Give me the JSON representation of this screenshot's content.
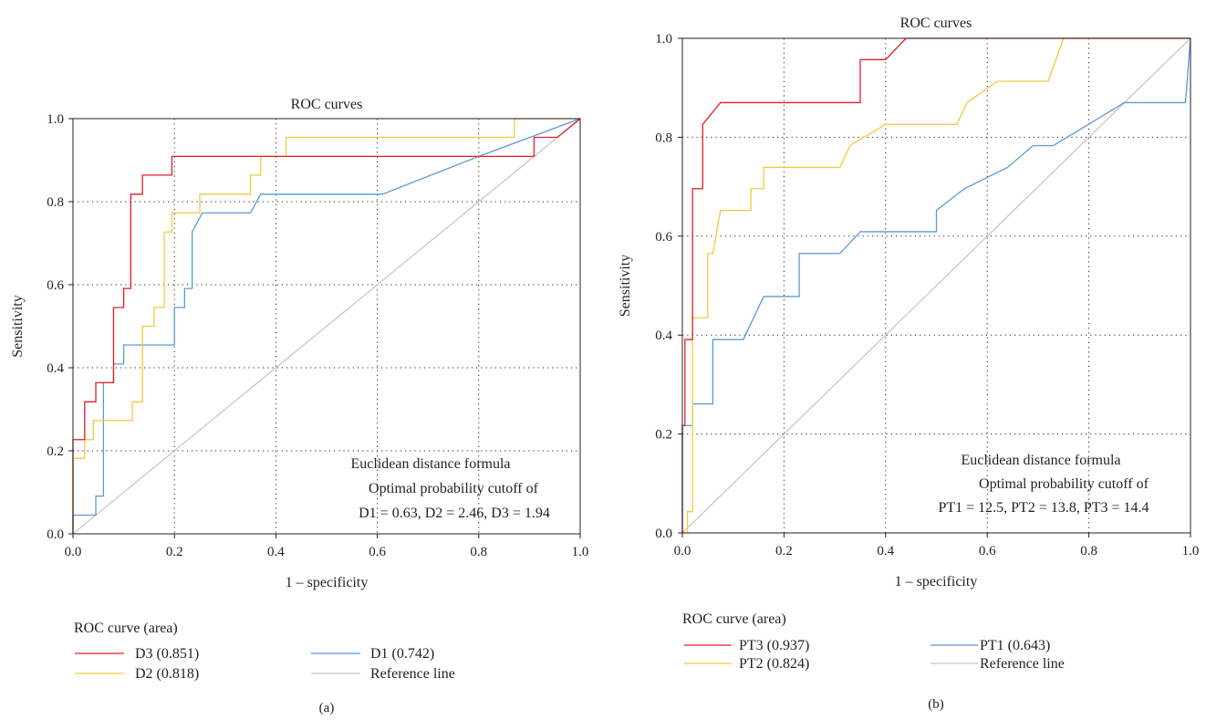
{
  "chart_data": [
    {
      "type": "line",
      "panel_label": "(a)",
      "title": "ROC curves",
      "xlabel": "1 – specificity",
      "ylabel": "Sensitivity",
      "xlim": [
        0,
        1
      ],
      "ylim": [
        0,
        1
      ],
      "x_ticks": [
        "0.0",
        "0.2",
        "0.4",
        "0.6",
        "0.8",
        "1.0"
      ],
      "y_ticks": [
        "0.0",
        "0.2",
        "0.4",
        "0.6",
        "0.8",
        "1.0"
      ],
      "grid": "dotted, major ticks",
      "annotation": [
        "Euclidean distance formula",
        "Optimal probability cutoff of",
        "D1 = 0.63, D2 = 2.46, D3 = 1.94"
      ],
      "legend_title": "ROC curve (area)",
      "legend_placement": "bottom",
      "series": [
        {
          "name": "D3 (0.851)",
          "color": "#e31e24",
          "points": [
            [
              0,
              0
            ],
            [
              0,
              0.227
            ],
            [
              0.023,
              0.227
            ],
            [
              0.023,
              0.318
            ],
            [
              0.045,
              0.318
            ],
            [
              0.045,
              0.364
            ],
            [
              0.08,
              0.364
            ],
            [
              0.08,
              0.545
            ],
            [
              0.1,
              0.545
            ],
            [
              0.1,
              0.591
            ],
            [
              0.114,
              0.591
            ],
            [
              0.114,
              0.818
            ],
            [
              0.137,
              0.818
            ],
            [
              0.137,
              0.864
            ],
            [
              0.195,
              0.864
            ],
            [
              0.195,
              0.909
            ],
            [
              0.909,
              0.909
            ],
            [
              0.909,
              0.955
            ],
            [
              0.955,
              0.955
            ],
            [
              1,
              1
            ]
          ]
        },
        {
          "name": "D2 (0.818)",
          "color": "#f5c842",
          "points": [
            [
              0,
              0
            ],
            [
              0,
              0.182
            ],
            [
              0.023,
              0.182
            ],
            [
              0.023,
              0.227
            ],
            [
              0.04,
              0.227
            ],
            [
              0.04,
              0.273
            ],
            [
              0.117,
              0.273
            ],
            [
              0.117,
              0.318
            ],
            [
              0.137,
              0.318
            ],
            [
              0.137,
              0.5
            ],
            [
              0.16,
              0.5
            ],
            [
              0.16,
              0.545
            ],
            [
              0.18,
              0.545
            ],
            [
              0.18,
              0.727
            ],
            [
              0.195,
              0.727
            ],
            [
              0.195,
              0.773
            ],
            [
              0.25,
              0.773
            ],
            [
              0.25,
              0.818
            ],
            [
              0.35,
              0.818
            ],
            [
              0.35,
              0.864
            ],
            [
              0.37,
              0.864
            ],
            [
              0.37,
              0.909
            ],
            [
              0.42,
              0.909
            ],
            [
              0.42,
              0.955
            ],
            [
              0.87,
              0.955
            ],
            [
              0.87,
              1
            ],
            [
              1,
              1
            ]
          ]
        },
        {
          "name": "D1 (0.742)",
          "color": "#5b9bd5",
          "points": [
            [
              0,
              0
            ],
            [
              0,
              0.045
            ],
            [
              0.045,
              0.045
            ],
            [
              0.045,
              0.091
            ],
            [
              0.06,
              0.091
            ],
            [
              0.06,
              0.364
            ],
            [
              0.08,
              0.364
            ],
            [
              0.08,
              0.409
            ],
            [
              0.1,
              0.409
            ],
            [
              0.1,
              0.455
            ],
            [
              0.2,
              0.455
            ],
            [
              0.2,
              0.545
            ],
            [
              0.22,
              0.545
            ],
            [
              0.22,
              0.591
            ],
            [
              0.235,
              0.591
            ],
            [
              0.235,
              0.727
            ],
            [
              0.255,
              0.773
            ],
            [
              0.35,
              0.773
            ],
            [
              0.37,
              0.818
            ],
            [
              0.61,
              0.818
            ],
            [
              0.8,
              0.909
            ],
            [
              1,
              1
            ]
          ]
        },
        {
          "name": "Reference line",
          "color": "#c8c8c8",
          "points": [
            [
              0,
              0
            ],
            [
              1,
              1
            ]
          ]
        }
      ]
    },
    {
      "type": "line",
      "panel_label": "(b)",
      "title": "ROC curves",
      "xlabel": "1 – specificity",
      "ylabel": "Sensitivity",
      "xlim": [
        0,
        1
      ],
      "ylim": [
        0,
        1
      ],
      "x_ticks": [
        "0.0",
        "0.2",
        "0.4",
        "0.6",
        "0.8",
        "1.0"
      ],
      "y_ticks": [
        "0.0",
        "0.2",
        "0.4",
        "0.6",
        "0.8",
        "1.0"
      ],
      "grid": "dotted, major ticks",
      "annotation": [
        "Euclidean distance formula",
        "Optimal probability cutoff of",
        "PT1 = 12.5, PT2 = 13.8, PT3 = 14.4"
      ],
      "legend_title": "ROC curve (area)",
      "legend_placement": "bottom",
      "series": [
        {
          "name": "PT3 (0.937)",
          "color": "#e31e24",
          "points": [
            [
              0,
              0
            ],
            [
              0,
              0.217
            ],
            [
              0.005,
              0.217
            ],
            [
              0.005,
              0.391
            ],
            [
              0.02,
              0.391
            ],
            [
              0.02,
              0.696
            ],
            [
              0.04,
              0.696
            ],
            [
              0.04,
              0.826
            ],
            [
              0.075,
              0.87
            ],
            [
              0.35,
              0.87
            ],
            [
              0.35,
              0.957
            ],
            [
              0.4,
              0.957
            ],
            [
              0.44,
              1
            ],
            [
              1,
              1
            ]
          ]
        },
        {
          "name": "PT2 (0.824)",
          "color": "#f5c842",
          "points": [
            [
              0,
              0
            ],
            [
              0.01,
              0
            ],
            [
              0.01,
              0.043
            ],
            [
              0.02,
              0.043
            ],
            [
              0.02,
              0.435
            ],
            [
              0.05,
              0.435
            ],
            [
              0.05,
              0.565
            ],
            [
              0.06,
              0.565
            ],
            [
              0.075,
              0.652
            ],
            [
              0.135,
              0.652
            ],
            [
              0.135,
              0.696
            ],
            [
              0.16,
              0.696
            ],
            [
              0.16,
              0.739
            ],
            [
              0.31,
              0.739
            ],
            [
              0.33,
              0.783
            ],
            [
              0.4,
              0.826
            ],
            [
              0.54,
              0.826
            ],
            [
              0.56,
              0.87
            ],
            [
              0.62,
              0.913
            ],
            [
              0.72,
              0.913
            ],
            [
              0.75,
              1
            ],
            [
              1,
              1
            ]
          ]
        },
        {
          "name": "PT1 (0.643)",
          "color": "#5b9bd5",
          "points": [
            [
              0,
              0
            ],
            [
              0,
              0.217
            ],
            [
              0.02,
              0.217
            ],
            [
              0.02,
              0.261
            ],
            [
              0.06,
              0.261
            ],
            [
              0.06,
              0.391
            ],
            [
              0.12,
              0.391
            ],
            [
              0.16,
              0.478
            ],
            [
              0.23,
              0.478
            ],
            [
              0.23,
              0.565
            ],
            [
              0.31,
              0.565
            ],
            [
              0.35,
              0.609
            ],
            [
              0.5,
              0.609
            ],
            [
              0.5,
              0.652
            ],
            [
              0.555,
              0.696
            ],
            [
              0.64,
              0.739
            ],
            [
              0.69,
              0.783
            ],
            [
              0.73,
              0.783
            ],
            [
              0.87,
              0.87
            ],
            [
              0.99,
              0.87
            ],
            [
              1,
              1
            ]
          ]
        },
        {
          "name": "Reference line",
          "color": "#c8c8c8",
          "points": [
            [
              0,
              0
            ],
            [
              1,
              1
            ]
          ]
        }
      ]
    }
  ]
}
